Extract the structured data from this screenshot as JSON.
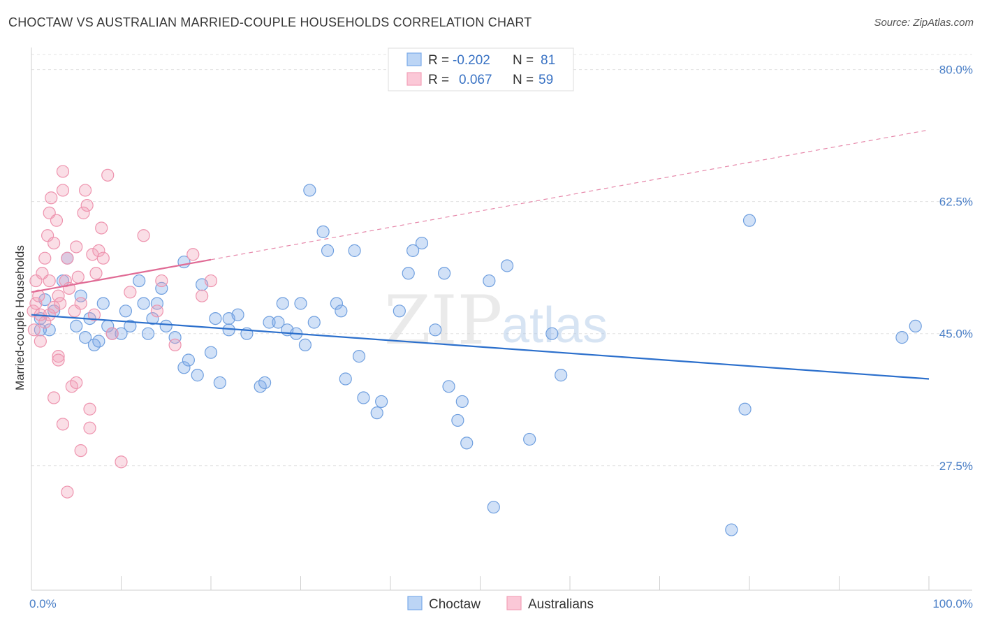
{
  "chart_data": {
    "type": "scatter",
    "title": "CHOCTAW VS AUSTRALIAN MARRIED-COUPLE HOUSEHOLDS CORRELATION CHART",
    "source": "Source: ZipAtlas.com",
    "ylabel": "Married-couple Households",
    "xlim": [
      0,
      100
    ],
    "ylim": [
      11,
      82
    ],
    "y_ticks": [
      80.0,
      62.5,
      45.0,
      27.5
    ],
    "y_tick_labels": [
      "80.0%",
      "62.5%",
      "45.0%",
      "27.5%"
    ],
    "x_tick_labels": [
      "0.0%",
      "100.0%"
    ],
    "watermark": {
      "zip": "ZIP",
      "atlas": "atlas"
    },
    "colors": {
      "choctaw": "#7aaae8",
      "australians": "#f2a0b8",
      "choctaw_line": "#2b6fcc",
      "australians_line": "#e06b95"
    },
    "legend": [
      {
        "r_label": "R =",
        "r_value": "-0.202",
        "n_label": "N =",
        "n_value": "81"
      },
      {
        "r_label": "R =",
        "r_value": "0.067",
        "n_label": "N =",
        "n_value": "59"
      }
    ],
    "series": [
      {
        "name": "Choctaw",
        "trend": {
          "x0": 0,
          "y0": 47.5,
          "x1": 100,
          "y1": 39.0
        },
        "points": [
          [
            1,
            47
          ],
          [
            1.5,
            49.5
          ],
          [
            2,
            45.5
          ],
          [
            2.5,
            48
          ],
          [
            3.5,
            52
          ],
          [
            4,
            55
          ],
          [
            5,
            46
          ],
          [
            5.5,
            50
          ],
          [
            6,
            44.5
          ],
          [
            6.5,
            47
          ],
          [
            7,
            43.5
          ],
          [
            7.5,
            44
          ],
          [
            8,
            49
          ],
          [
            8.5,
            46
          ],
          [
            9,
            45
          ],
          [
            10,
            45
          ],
          [
            10.5,
            48
          ],
          [
            11,
            46
          ],
          [
            12,
            52
          ],
          [
            12.5,
            49
          ],
          [
            13,
            45
          ],
          [
            13.5,
            47
          ],
          [
            14,
            49
          ],
          [
            14.5,
            51
          ],
          [
            15,
            46
          ],
          [
            16,
            44.5
          ],
          [
            17,
            54.5
          ],
          [
            17,
            40.5
          ],
          [
            17.5,
            41.5
          ],
          [
            18.5,
            39.5
          ],
          [
            19,
            51.5
          ],
          [
            20,
            42.5
          ],
          [
            20.5,
            47
          ],
          [
            21,
            38.5
          ],
          [
            22,
            47
          ],
          [
            22,
            45.5
          ],
          [
            23,
            47.5
          ],
          [
            24,
            45
          ],
          [
            25.5,
            38
          ],
          [
            26,
            38.5
          ],
          [
            26.5,
            46.5
          ],
          [
            27.5,
            46.5
          ],
          [
            28,
            49
          ],
          [
            28.5,
            45.5
          ],
          [
            29.5,
            45
          ],
          [
            30,
            49
          ],
          [
            30.5,
            43.5
          ],
          [
            31,
            64
          ],
          [
            31.5,
            46.5
          ],
          [
            32.5,
            58.5
          ],
          [
            33,
            56
          ],
          [
            34,
            49
          ],
          [
            34.5,
            48
          ],
          [
            35,
            39
          ],
          [
            36,
            56
          ],
          [
            36.5,
            42
          ],
          [
            37,
            36.5
          ],
          [
            38.5,
            34.5
          ],
          [
            39,
            36
          ],
          [
            41,
            48
          ],
          [
            42,
            53
          ],
          [
            42.5,
            56
          ],
          [
            43.5,
            57
          ],
          [
            45,
            45.5
          ],
          [
            46,
            53
          ],
          [
            46.5,
            38
          ],
          [
            47.5,
            33.5
          ],
          [
            48,
            36
          ],
          [
            48.5,
            30.5
          ],
          [
            51,
            52
          ],
          [
            51.5,
            22
          ],
          [
            53,
            54
          ],
          [
            55.5,
            31
          ],
          [
            58,
            45
          ],
          [
            59,
            39.5
          ],
          [
            78,
            19
          ],
          [
            79.5,
            35
          ],
          [
            80,
            60
          ],
          [
            97,
            44.5
          ],
          [
            98.5,
            46
          ],
          [
            1,
            45.5
          ]
        ]
      },
      {
        "name": "Australians",
        "trend": {
          "x0": 0,
          "y0": 50.5,
          "x1": 100,
          "y1": 72.0,
          "solid_until": 20
        },
        "points": [
          [
            0.2,
            48
          ],
          [
            0.3,
            45.5
          ],
          [
            0.5,
            49
          ],
          [
            0.5,
            52
          ],
          [
            0.8,
            50
          ],
          [
            1,
            47.5
          ],
          [
            1,
            44
          ],
          [
            1.2,
            53
          ],
          [
            1.5,
            46.5
          ],
          [
            1.5,
            55
          ],
          [
            1.8,
            58
          ],
          [
            2,
            61
          ],
          [
            2,
            52
          ],
          [
            2.2,
            63
          ],
          [
            2.5,
            48.5
          ],
          [
            2.5,
            57
          ],
          [
            2.8,
            60
          ],
          [
            3,
            42
          ],
          [
            3,
            50
          ],
          [
            3.2,
            49
          ],
          [
            3.5,
            66.5
          ],
          [
            3.5,
            64
          ],
          [
            3.8,
            52
          ],
          [
            4,
            55
          ],
          [
            4.2,
            51
          ],
          [
            4.5,
            38
          ],
          [
            4.8,
            48
          ],
          [
            5,
            56.5
          ],
          [
            5,
            38.5
          ],
          [
            5.2,
            52.5
          ],
          [
            5.5,
            49
          ],
          [
            5.8,
            61
          ],
          [
            6,
            64
          ],
          [
            6.2,
            62
          ],
          [
            6.5,
            35
          ],
          [
            6.8,
            55.5
          ],
          [
            7,
            47.5
          ],
          [
            7.2,
            53
          ],
          [
            7.5,
            56
          ],
          [
            7.8,
            59
          ],
          [
            8,
            55
          ],
          [
            8.5,
            66
          ],
          [
            9,
            45
          ],
          [
            10,
            28
          ],
          [
            11,
            50.5
          ],
          [
            12.5,
            58
          ],
          [
            14,
            48
          ],
          [
            14.5,
            52
          ],
          [
            16,
            43.5
          ],
          [
            18,
            55.5
          ],
          [
            19,
            50
          ],
          [
            20,
            52
          ],
          [
            3.5,
            33
          ],
          [
            4,
            24
          ],
          [
            5.5,
            29.5
          ],
          [
            6.5,
            32.5
          ],
          [
            3,
            41.5
          ],
          [
            2,
            47.5
          ],
          [
            2.5,
            36.5
          ]
        ]
      }
    ]
  }
}
